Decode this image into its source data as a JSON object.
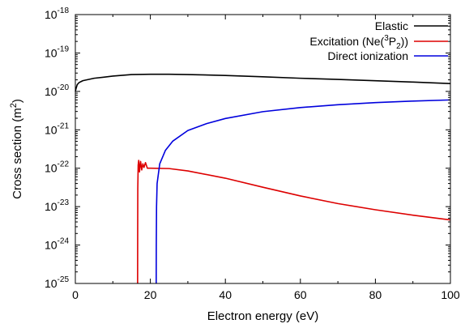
{
  "chart_data": {
    "type": "line",
    "title": "",
    "xlabel": "Electron energy (eV)",
    "ylabel": "Cross section (m",
    "ylabel_sup": "2",
    "ylabel_end": ")",
    "xlim": [
      0,
      100
    ],
    "ylim": [
      1e-25,
      1e-18
    ],
    "yscale": "log",
    "grid": false,
    "legend_position": "top-right",
    "x_ticks": [
      "0",
      "20",
      "40",
      "60",
      "80",
      "100"
    ],
    "y_ticks": [
      {
        "base": "10",
        "exp": "-25"
      },
      {
        "base": "10",
        "exp": "-24"
      },
      {
        "base": "10",
        "exp": "-23"
      },
      {
        "base": "10",
        "exp": "-22"
      },
      {
        "base": "10",
        "exp": "-21"
      },
      {
        "base": "10",
        "exp": "-20"
      },
      {
        "base": "10",
        "exp": "-19"
      },
      {
        "base": "10",
        "exp": "-18"
      }
    ],
    "series": [
      {
        "name": "Elastic",
        "color": "#000000",
        "points": [
          [
            0,
            1e-20
          ],
          [
            0.2,
            1.2e-20
          ],
          [
            0.5,
            1.5e-20
          ],
          [
            1,
            1.7e-20
          ],
          [
            2,
            1.9e-20
          ],
          [
            5,
            2.2e-20
          ],
          [
            10,
            2.5e-20
          ],
          [
            15,
            2.75e-20
          ],
          [
            20,
            2.8e-20
          ],
          [
            25,
            2.8e-20
          ],
          [
            30,
            2.75e-20
          ],
          [
            40,
            2.6e-20
          ],
          [
            50,
            2.4e-20
          ],
          [
            60,
            2.2e-20
          ],
          [
            70,
            2.05e-20
          ],
          [
            80,
            1.9e-20
          ],
          [
            90,
            1.75e-20
          ],
          [
            100,
            1.6e-20
          ]
        ]
      },
      {
        "name": "Excitation (Ne(",
        "name_sup": "3",
        "name_mid": "P",
        "name_sub": "2",
        "name_end": "))",
        "color": "#dd0000",
        "points": [
          [
            16.6,
            1e-25
          ],
          [
            16.62,
            2e-24
          ],
          [
            16.65,
            3e-23
          ],
          [
            16.75,
            1.2e-22
          ],
          [
            16.9,
            1.6e-22
          ],
          [
            17.1,
            8e-23
          ],
          [
            17.4,
            1.5e-22
          ],
          [
            17.7,
            9e-23
          ],
          [
            18.0,
            1.3e-22
          ],
          [
            18.3,
            1.05e-22
          ],
          [
            18.7,
            1.4e-22
          ],
          [
            19.2,
            1e-22
          ],
          [
            20,
            1e-22
          ],
          [
            25,
            9.8e-23
          ],
          [
            30,
            8.5e-23
          ],
          [
            40,
            5.5e-23
          ],
          [
            50,
            3.2e-23
          ],
          [
            60,
            1.9e-23
          ],
          [
            70,
            1.2e-23
          ],
          [
            80,
            8.3e-24
          ],
          [
            90,
            6e-24
          ],
          [
            100,
            4.5e-24
          ]
        ]
      },
      {
        "name": "Direct ionization",
        "color": "#0000dd",
        "points": [
          [
            21.56,
            1e-25
          ],
          [
            21.58,
            1e-24
          ],
          [
            21.65,
            1e-23
          ],
          [
            21.8,
            4e-23
          ],
          [
            22.5,
            1.3e-22
          ],
          [
            24,
            2.9e-22
          ],
          [
            26,
            5.1e-22
          ],
          [
            30,
            9.6e-22
          ],
          [
            35,
            1.45e-21
          ],
          [
            40,
            1.97e-21
          ],
          [
            50,
            2.97e-21
          ],
          [
            60,
            3.8e-21
          ],
          [
            70,
            4.5e-21
          ],
          [
            80,
            5.1e-21
          ],
          [
            90,
            5.6e-21
          ],
          [
            100,
            6e-21
          ]
        ]
      }
    ]
  }
}
